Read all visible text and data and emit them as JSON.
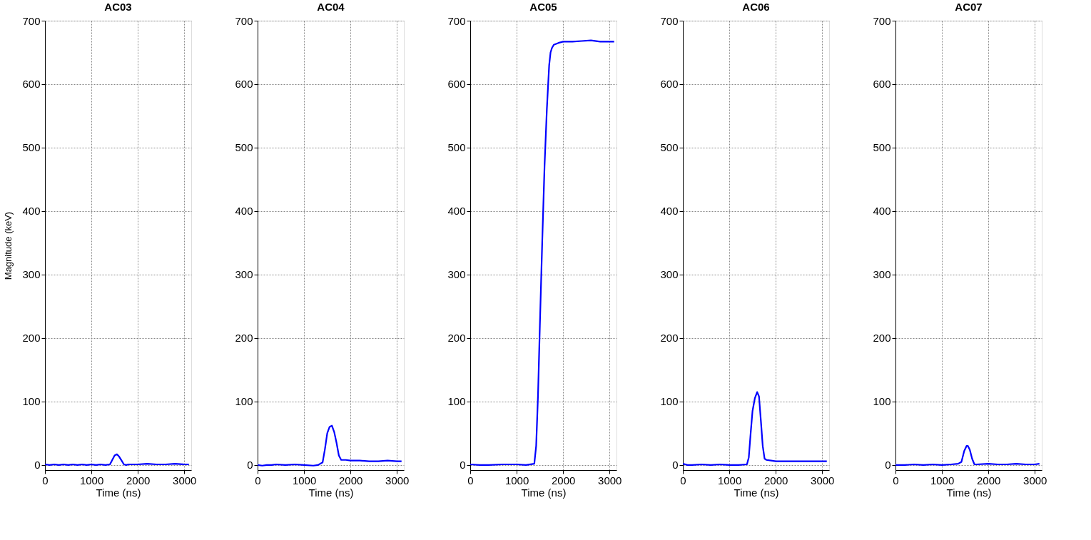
{
  "chart_data": [
    {
      "type": "line",
      "title": "AC03",
      "xlabel": "Time (ns)",
      "ylabel": "Magnitude (keV)",
      "xlim": [
        0,
        3150
      ],
      "ylim": [
        -8,
        700
      ],
      "xticks": [
        0,
        1000,
        2000,
        3000
      ],
      "yticks": [
        0,
        100,
        200,
        300,
        400,
        500,
        600,
        700
      ],
      "grid": true,
      "line_style": "solid",
      "marker": "none",
      "series": [
        {
          "color": "#0000ff",
          "x": [
            0,
            100,
            200,
            300,
            400,
            500,
            600,
            700,
            800,
            900,
            1000,
            1100,
            1200,
            1300,
            1400,
            1450,
            1500,
            1550,
            1600,
            1650,
            1700,
            1750,
            1800,
            2000,
            2200,
            2400,
            2600,
            2800,
            3000,
            3100
          ],
          "values": [
            1,
            0,
            1,
            0,
            1,
            0,
            1,
            0,
            1,
            0,
            1,
            0,
            1,
            0,
            1,
            8,
            15,
            17,
            13,
            7,
            1,
            0,
            1,
            1,
            2,
            1,
            1,
            2,
            1,
            1
          ]
        }
      ]
    },
    {
      "type": "line",
      "title": "AC04",
      "xlabel": "Time (ns)",
      "xlim": [
        0,
        3150
      ],
      "ylim": [
        -8,
        700
      ],
      "xticks": [
        0,
        1000,
        2000,
        3000
      ],
      "yticks": [
        0,
        100,
        200,
        300,
        400,
        500,
        600,
        700
      ],
      "grid": true,
      "line_style": "solid",
      "marker": "none",
      "series": [
        {
          "color": "#0000ff",
          "x": [
            0,
            100,
            200,
            300,
            400,
            600,
            800,
            1000,
            1200,
            1300,
            1400,
            1450,
            1500,
            1550,
            1600,
            1650,
            1700,
            1750,
            1800,
            1900,
            2000,
            2200,
            2400,
            2600,
            2800,
            3000,
            3100
          ],
          "values": [
            0,
            -1,
            0,
            0,
            1,
            0,
            1,
            0,
            -1,
            0,
            4,
            25,
            50,
            60,
            62,
            52,
            35,
            15,
            8,
            8,
            7,
            7,
            6,
            6,
            7,
            6,
            6
          ]
        }
      ]
    },
    {
      "type": "line",
      "title": "AC05",
      "xlabel": "Time (ns)",
      "xlim": [
        0,
        3150
      ],
      "ylim": [
        -8,
        700
      ],
      "xticks": [
        0,
        1000,
        2000,
        3000
      ],
      "yticks": [
        0,
        100,
        200,
        300,
        400,
        500,
        600,
        700
      ],
      "grid": true,
      "line_style": "solid",
      "marker": "none",
      "series": [
        {
          "color": "#0000ff",
          "x": [
            0,
            200,
            400,
            700,
            1000,
            1200,
            1380,
            1420,
            1460,
            1500,
            1550,
            1600,
            1650,
            1700,
            1730,
            1760,
            1800,
            1900,
            2000,
            2200,
            2400,
            2600,
            2800,
            3100
          ],
          "values": [
            1,
            0,
            0,
            1,
            1,
            0,
            2,
            30,
            110,
            220,
            350,
            470,
            560,
            630,
            650,
            657,
            662,
            665,
            667,
            667,
            668,
            669,
            667,
            667
          ]
        }
      ]
    },
    {
      "type": "line",
      "title": "AC06",
      "xlabel": "Time (ns)",
      "xlim": [
        0,
        3150
      ],
      "ylim": [
        -8,
        700
      ],
      "xticks": [
        0,
        1000,
        2000,
        3000
      ],
      "yticks": [
        0,
        100,
        200,
        300,
        400,
        500,
        600,
        700
      ],
      "grid": true,
      "line_style": "solid",
      "marker": "none",
      "series": [
        {
          "color": "#0000ff",
          "x": [
            0,
            100,
            200,
            400,
            600,
            800,
            1000,
            1200,
            1380,
            1420,
            1460,
            1500,
            1550,
            1600,
            1640,
            1680,
            1720,
            1760,
            1800,
            1900,
            2000,
            2400,
            2800,
            3100
          ],
          "values": [
            2,
            0,
            0,
            1,
            0,
            1,
            0,
            0,
            1,
            12,
            50,
            85,
            105,
            115,
            108,
            70,
            30,
            10,
            8,
            7,
            6,
            6,
            6,
            6
          ]
        }
      ]
    },
    {
      "type": "line",
      "title": "AC07",
      "xlabel": "Time (ns)",
      "xlim": [
        0,
        3150
      ],
      "ylim": [
        -8,
        700
      ],
      "xticks": [
        0,
        1000,
        2000,
        3000
      ],
      "yticks": [
        0,
        100,
        200,
        300,
        400,
        500,
        600,
        700
      ],
      "grid": true,
      "line_style": "solid",
      "marker": "none",
      "series": [
        {
          "color": "#0000ff",
          "x": [
            0,
            200,
            400,
            600,
            800,
            1000,
            1200,
            1350,
            1420,
            1480,
            1530,
            1560,
            1600,
            1650,
            1700,
            1750,
            2000,
            2200,
            2400,
            2600,
            2800,
            3000,
            3100
          ],
          "values": [
            0,
            0,
            1,
            0,
            1,
            0,
            1,
            2,
            5,
            22,
            30,
            30,
            24,
            10,
            1,
            1,
            2,
            1,
            1,
            2,
            1,
            1,
            2
          ]
        }
      ]
    }
  ]
}
